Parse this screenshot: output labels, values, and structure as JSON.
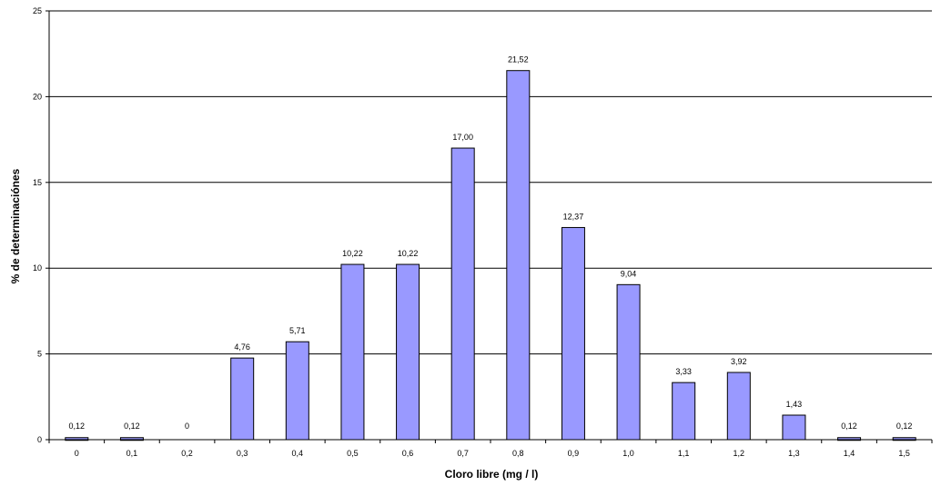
{
  "chart_data": {
    "type": "bar",
    "title": "",
    "xlabel": "Cloro libre (mg / l)",
    "ylabel": "% de determinaciónes",
    "ylim": [
      0,
      25
    ],
    "yticks": [
      "0",
      "5",
      "10",
      "15",
      "20",
      "25"
    ],
    "grid": true,
    "legend": "none",
    "categories": [
      "0",
      "0,1",
      "0,2",
      "0,3",
      "0,4",
      "0,5",
      "0,6",
      "0,7",
      "0,8",
      "0,9",
      "1,0",
      "1,1",
      "1,2",
      "1,3",
      "1,4",
      "1,5"
    ],
    "values": [
      0.12,
      0.12,
      0,
      4.76,
      5.71,
      10.22,
      10.22,
      17.0,
      21.52,
      12.37,
      9.04,
      3.33,
      3.92,
      1.43,
      0.12,
      0.12
    ],
    "value_labels": [
      "0,12",
      "0,12",
      "0",
      "4,76",
      "5,71",
      "10,22",
      "10,22",
      "17,00",
      "21,52",
      "12,37",
      "9,04",
      "3,33",
      "3,92",
      "1,43",
      "0,12",
      "0,12"
    ],
    "bar_color": "#9999ff",
    "bar_edge_color": "#000000"
  }
}
